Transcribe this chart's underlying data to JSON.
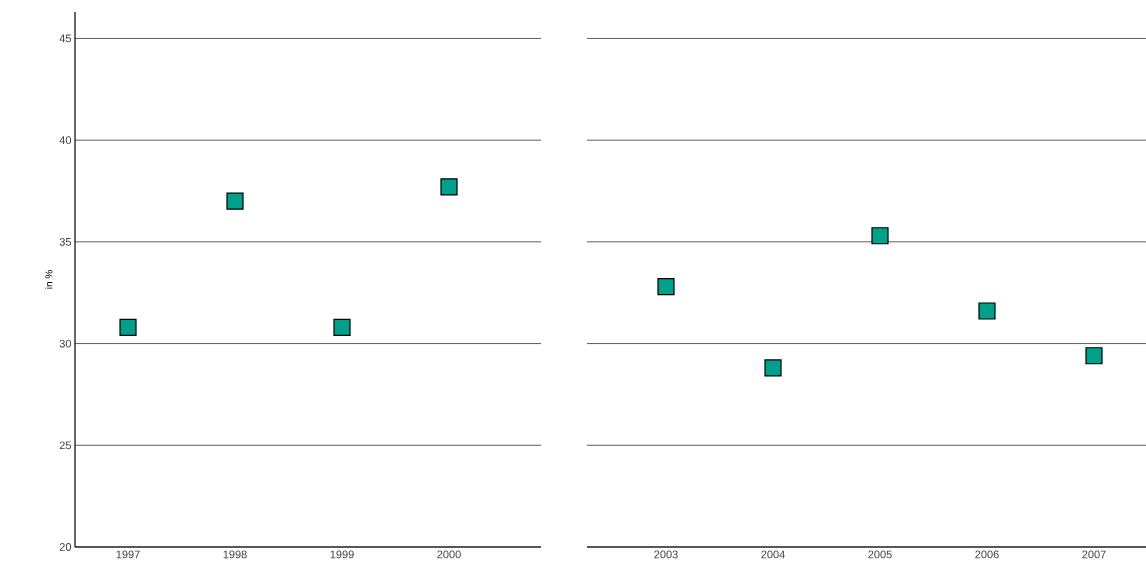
{
  "chart_data": [
    {
      "type": "scatter",
      "ylabel": "in %",
      "categories": [
        "1997",
        "1998",
        "1999",
        "2000"
      ],
      "values": [
        30.8,
        37.0,
        30.8,
        37.7
      ],
      "color": "#00a08a",
      "ylim": [
        20,
        46.3
      ],
      "yticks": [
        20,
        25,
        30,
        35,
        40,
        45
      ],
      "grid": "y",
      "marker": "square"
    },
    {
      "type": "scatter",
      "categories": [
        "2003",
        "2004",
        "2005",
        "2006",
        "2007"
      ],
      "values": [
        32.8,
        28.8,
        35.3,
        31.6,
        29.4
      ],
      "color": "#00a08a",
      "ylim": [
        20,
        45
      ],
      "yticks": [
        20,
        25,
        30,
        35,
        40,
        45
      ],
      "grid": "y",
      "marker": "square",
      "tick_labels": "x"
    }
  ]
}
